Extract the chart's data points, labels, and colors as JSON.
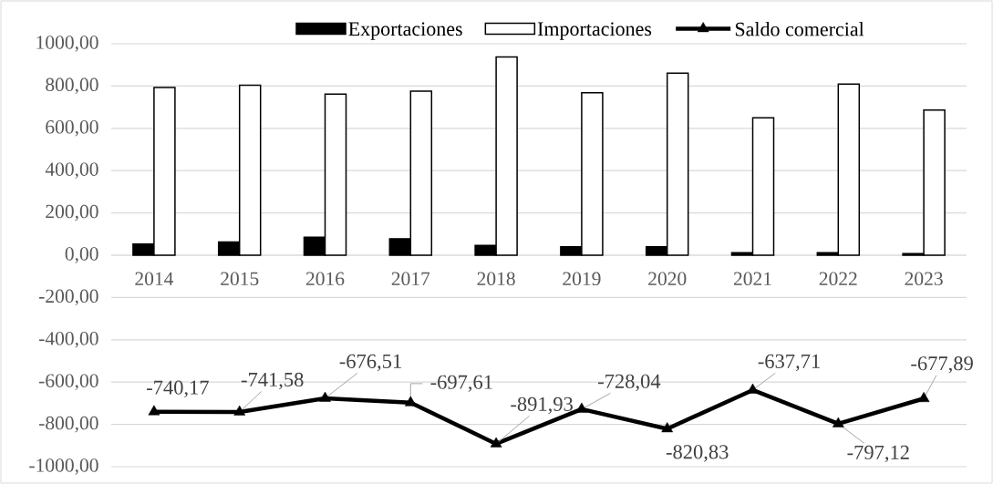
{
  "chart_data": {
    "type": "bar",
    "categories": [
      "2014",
      "2015",
      "2016",
      "2017",
      "2018",
      "2019",
      "2020",
      "2021",
      "2022",
      "2023"
    ],
    "series": [
      {
        "name": "Exportaciones",
        "color": "#000000",
        "values": [
          53,
          62,
          85,
          78,
          46,
          40,
          40,
          12,
          12,
          8
        ]
      },
      {
        "name": "Importaciones",
        "color": "#ffffff",
        "values": [
          793,
          804,
          762,
          776,
          938,
          768,
          861,
          650,
          809,
          686
        ]
      },
      {
        "name": "Saldo comercial",
        "type": "line",
        "color": "#000000",
        "marker": "triangle",
        "line_style": "solid",
        "values": [
          -740.17,
          -741.58,
          -676.51,
          -697.61,
          -891.93,
          -728.04,
          -820.83,
          -637.71,
          -797.12,
          -677.89
        ],
        "value_labels": [
          "-740,17",
          "-741,58",
          "-676,51",
          "-697,61",
          "-891,93",
          "-728,04",
          "-820,83",
          "-637,71",
          "-797,12",
          "-677,89"
        ]
      }
    ],
    "ylim": [
      -1000,
      1000
    ],
    "yticks": [
      {
        "value": -1000,
        "label": "-1000,00"
      },
      {
        "value": -800,
        "label": "-800,00"
      },
      {
        "value": -600,
        "label": "-600,00"
      },
      {
        "value": -400,
        "label": "-400,00"
      },
      {
        "value": -200,
        "label": "-200,00"
      },
      {
        "value": 0,
        "label": "0,00"
      },
      {
        "value": 200,
        "label": "200,00"
      },
      {
        "value": 400,
        "label": "400,00"
      },
      {
        "value": 600,
        "label": "600,00"
      },
      {
        "value": 800,
        "label": "800,00"
      },
      {
        "value": 1000,
        "label": "1000,00"
      }
    ],
    "grid": "y",
    "legend": "top"
  }
}
